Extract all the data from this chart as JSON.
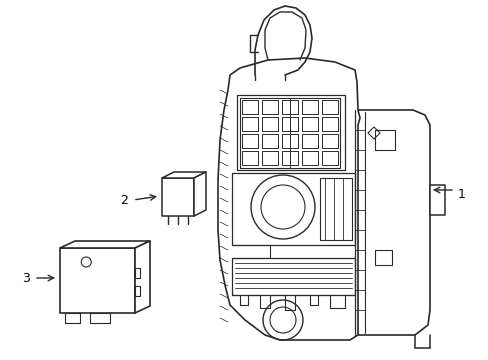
{
  "background_color": "#ffffff",
  "line_color": "#2a2a2a",
  "line_width": 1.0,
  "label_color": "#000000",
  "figsize": [
    4.89,
    3.6
  ],
  "dpi": 100
}
